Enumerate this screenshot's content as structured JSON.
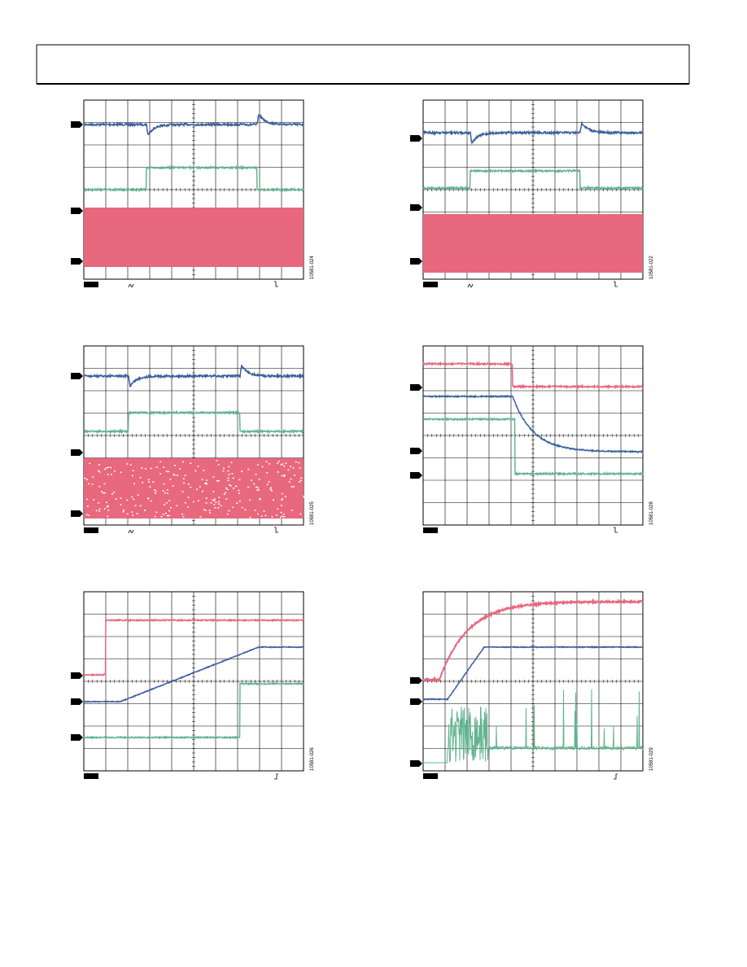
{
  "figures": [
    {
      "id": "10581-024"
    },
    {
      "id": "10581-022"
    },
    {
      "id": "10581-025"
    },
    {
      "id": "10581-028"
    },
    {
      "id": "10581-026"
    },
    {
      "id": "10581-029"
    }
  ]
}
